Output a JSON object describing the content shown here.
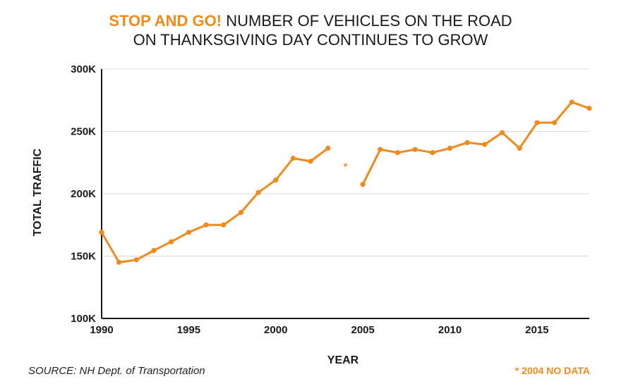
{
  "colors": {
    "accent": "#f08a1c",
    "text": "#1a1a1a",
    "grid": "#d9d9d9",
    "axis": "#1a1a1a"
  },
  "title": {
    "highlight": "STOP AND GO!",
    "line1_rest": "NUMBER OF VEHICLES ON THE ROAD",
    "line2": "ON THANKSGIVING DAY CONTINUES TO GROW"
  },
  "source": "SOURCE: NH Dept. of Transportation",
  "note": "* 2004 NO DATA",
  "gap_marker": "*",
  "chart_data": {
    "type": "line",
    "xlabel": "YEAR",
    "ylabel": "TOTAL TRAFFIC",
    "xlim": [
      1990,
      2018
    ],
    "ylim": [
      100000,
      300000
    ],
    "x_ticks": [
      1990,
      1995,
      2000,
      2005,
      2010,
      2015
    ],
    "x_tick_labels": [
      "1990",
      "1995",
      "2000",
      "2005",
      "2010",
      "2015"
    ],
    "y_ticks": [
      100000,
      150000,
      200000,
      250000,
      300000
    ],
    "y_tick_labels": [
      "100K",
      "150K",
      "200K",
      "250K",
      "300K"
    ],
    "grid": "horizontal",
    "missing": [
      2004
    ],
    "series": [
      {
        "points": [
          [
            1990,
            169000
          ],
          [
            1991,
            145000
          ],
          [
            1992,
            147000
          ],
          [
            1993,
            154500
          ],
          [
            1994,
            161500
          ],
          [
            1995,
            169000
          ],
          [
            1996,
            175000
          ],
          [
            1997,
            175000
          ],
          [
            1998,
            185000
          ],
          [
            1999,
            201000
          ],
          [
            2000,
            211000
          ],
          [
            2001,
            228500
          ],
          [
            2002,
            226000
          ],
          [
            2003,
            236500
          ],
          [
            2005,
            207500
          ],
          [
            2006,
            235500
          ],
          [
            2007,
            233000
          ],
          [
            2008,
            235500
          ],
          [
            2009,
            233000
          ],
          [
            2010,
            236500
          ],
          [
            2011,
            241000
          ],
          [
            2012,
            239500
          ],
          [
            2013,
            249000
          ],
          [
            2014,
            236500
          ],
          [
            2015,
            257000
          ],
          [
            2016,
            257000
          ],
          [
            2017,
            273500
          ],
          [
            2018,
            268500
          ]
        ]
      }
    ]
  }
}
